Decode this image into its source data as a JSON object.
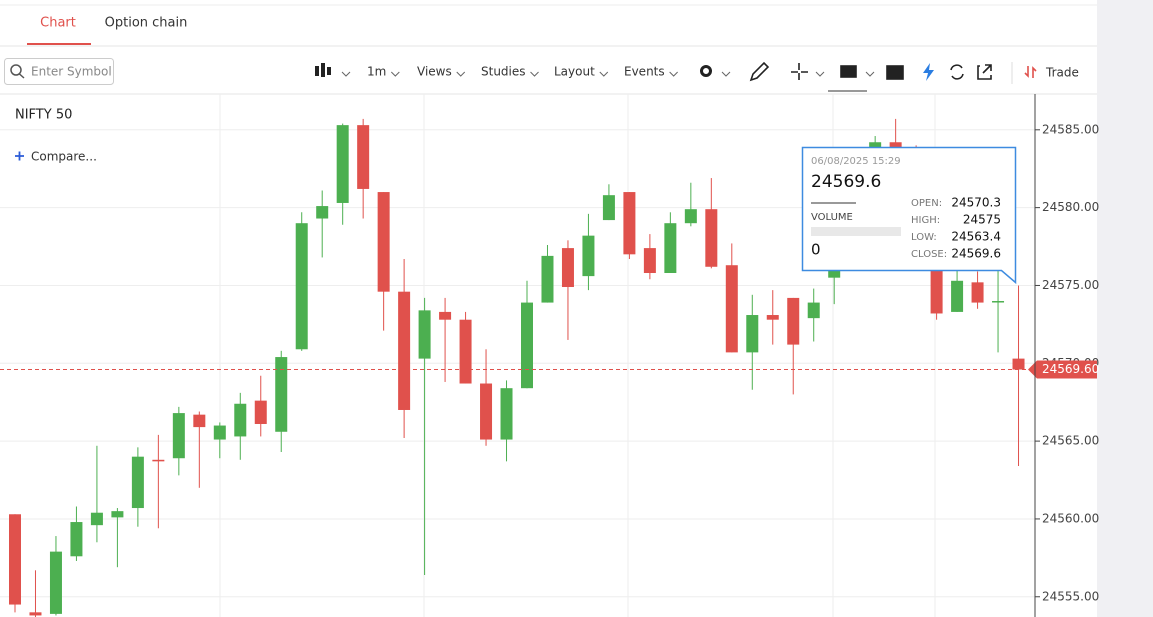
{
  "tabs": [
    "Chart",
    "Option chain"
  ],
  "search_placeholder": "Enter Symbol",
  "toolbar": [
    "1m",
    "Views",
    "Studies",
    "Layout",
    "Events"
  ],
  "trade": "Trade",
  "symbol": "NIFTY 50",
  "compare": "Compare...",
  "chart_data": {
    "type": "candlestick",
    "open": [
      24560.3,
      24554.0,
      24553.9,
      24557.6,
      24559.6,
      24560.1,
      24560.7,
      24563.8,
      24563.9,
      24566.7,
      24565.1,
      24565.3,
      24567.6,
      24565.6,
      24570.9,
      24579.3,
      24580.3,
      24585.3,
      24581.0,
      24574.6,
      24570.3,
      24573.3,
      24572.8,
      24568.7,
      24565.1,
      24568.4,
      24573.9,
      24577.4,
      24575.6,
      24579.2,
      24581.0,
      24577.4,
      24575.8,
      24579.0,
      24579.9,
      24576.3,
      24570.7,
      24573.1,
      24574.2,
      24572.9,
      24575.5,
      24576.5,
      24582.5,
      24584.2,
      24583.5,
      24576.5,
      24573.3,
      24575.2,
      24574.0,
      24570.3
    ],
    "high": [
      24560.3,
      24556.7,
      24558.9,
      24560.8,
      24564.7,
      24560.7,
      24564.6,
      24565.4,
      24567.2,
      24566.9,
      24566.2,
      24568.1,
      24569.2,
      24570.8,
      24579.7,
      24581.1,
      24585.4,
      24585.7,
      24581.0,
      24576.7,
      24574.2,
      24574.2,
      24573.3,
      24570.9,
      24568.9,
      24575.3,
      24577.6,
      24577.9,
      24579.6,
      24581.5,
      24581.0,
      24578.3,
      24579.7,
      24581.6,
      24581.9,
      24577.7,
      24574.4,
      24574.7,
      24574.2,
      24574.8,
      24577.0,
      24581.0,
      24584.6,
      24585.7,
      24584.0,
      24577.0,
      24576.0,
      24575.9,
      24576.6,
      24575
    ],
    "low": [
      24554.0,
      24553.7,
      24553.8,
      24557.3,
      24558.5,
      24556.9,
      24559.5,
      24559.4,
      24562.8,
      24562.0,
      24563.9,
      24563.8,
      24565.3,
      24564.3,
      24570.8,
      24576.8,
      24578.9,
      24579.3,
      24572.1,
      24565.2,
      24556.4,
      24568.8,
      24568.7,
      24564.7,
      24563.7,
      24568.4,
      24573.9,
      24571.5,
      24574.7,
      24579.2,
      24576.7,
      24575.4,
      24575.8,
      24578.8,
      24576.1,
      24570.7,
      24568.3,
      24571.2,
      24568.0,
      24571.4,
      24573.8,
      24576.0,
      24582.0,
      24582.8,
      24577.5,
      24572.8,
      24573.3,
      24573.5,
      24570.7,
      24563.4
    ],
    "close": [
      24554.5,
      24553.8,
      24557.9,
      24559.8,
      24560.4,
      24560.5,
      24564.0,
      24563.7,
      24566.8,
      24565.9,
      24566.0,
      24567.4,
      24566.1,
      24570.4,
      24579.0,
      24580.1,
      24585.3,
      24581.2,
      24574.6,
      24567.0,
      24573.4,
      24572.8,
      24568.7,
      24565.1,
      24568.4,
      24573.9,
      24576.9,
      24574.9,
      24578.2,
      24580.8,
      24577.0,
      24575.8,
      24579.0,
      24579.9,
      24576.2,
      24570.7,
      24573.1,
      24572.8,
      24571.2,
      24573.9,
      24576.5,
      24580.0,
      24584.2,
      24583.5,
      24578.0,
      24573.2,
      24575.3,
      24573.9,
      24574.0,
      24569.6
    ],
    "up_color": "#4caf50",
    "down_color": "#e0514c",
    "ylim": [
      24553.7,
      24587.3
    ],
    "yticks": [
      {
        "value": 24555,
        "label": "24555.00"
      },
      {
        "value": 24560,
        "label": "24560.00"
      },
      {
        "value": 24565,
        "label": "24565.00"
      },
      {
        "value": 24570,
        "label": "24570.00"
      },
      {
        "value": 24575,
        "label": "24575.00"
      },
      {
        "value": 24580,
        "label": "24580.00"
      },
      {
        "value": 24585,
        "label": "24585.00"
      }
    ],
    "grid": true,
    "last_price": {
      "value": 24569.6,
      "label": "24569.60"
    }
  },
  "tooltip": {
    "date": "06/08/2025 15:29",
    "price": "24569.6",
    "volume_label": "VOLUME",
    "volume": "0",
    "fields": [
      [
        "OPEN:",
        "24570.3"
      ],
      [
        "HIGH:",
        "24575"
      ],
      [
        "LOW:",
        "24563.4"
      ],
      [
        "CLOSE:",
        "24569.6"
      ]
    ]
  }
}
